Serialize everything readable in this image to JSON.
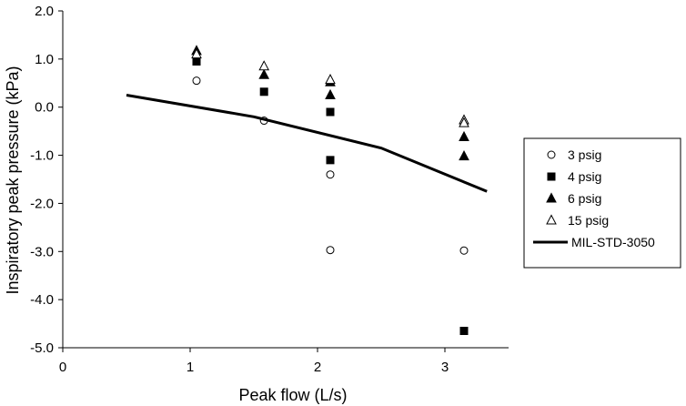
{
  "chart_data": {
    "type": "scatter",
    "xlabel": "Peak flow (L/s)",
    "ylabel": "Inspiratory  peak pressure (kPa)",
    "xlim": [
      0,
      3.5
    ],
    "ylim": [
      -5.0,
      2.0
    ],
    "xticks": [
      0,
      1,
      2,
      3
    ],
    "xtick_labels": [
      "0",
      "1",
      "2",
      "3"
    ],
    "yticks": [
      -5,
      -4,
      -3,
      -2,
      -1,
      0,
      1,
      2
    ],
    "ytick_labels": [
      "-5.0",
      "-4.0",
      "-3.0",
      "-2.0",
      "-1.0",
      "0.0",
      "1.0",
      "2.0"
    ],
    "grid": false,
    "legend_position": "right",
    "series": [
      {
        "name": "3 psig",
        "marker": "circle-open",
        "points": [
          [
            1.05,
            0.55
          ],
          [
            1.58,
            -0.28
          ],
          [
            2.1,
            -1.4
          ],
          [
            2.1,
            -2.97
          ],
          [
            3.15,
            -2.98
          ]
        ]
      },
      {
        "name": "4 psig",
        "marker": "square-filled",
        "points": [
          [
            1.05,
            0.95
          ],
          [
            1.58,
            0.32
          ],
          [
            2.1,
            -0.1
          ],
          [
            2.1,
            -1.1
          ],
          [
            3.15,
            -4.65
          ]
        ]
      },
      {
        "name": "6 psig",
        "marker": "triangle-filled",
        "points": [
          [
            1.05,
            1.17
          ],
          [
            1.58,
            0.67
          ],
          [
            2.1,
            0.52
          ],
          [
            2.1,
            0.25
          ],
          [
            3.15,
            -0.62
          ],
          [
            3.15,
            -1.02
          ]
        ]
      },
      {
        "name": "15 psig",
        "marker": "triangle-open",
        "points": [
          [
            1.05,
            1.1
          ],
          [
            1.58,
            0.85
          ],
          [
            2.1,
            0.57
          ],
          [
            3.15,
            -0.27
          ],
          [
            3.15,
            -0.33
          ]
        ]
      },
      {
        "name": "MIL-STD-3050",
        "marker": "line",
        "points": [
          [
            0.5,
            0.25
          ],
          [
            1.5,
            -0.2
          ],
          [
            2.5,
            -0.85
          ],
          [
            3.33,
            -1.75
          ]
        ]
      }
    ]
  }
}
